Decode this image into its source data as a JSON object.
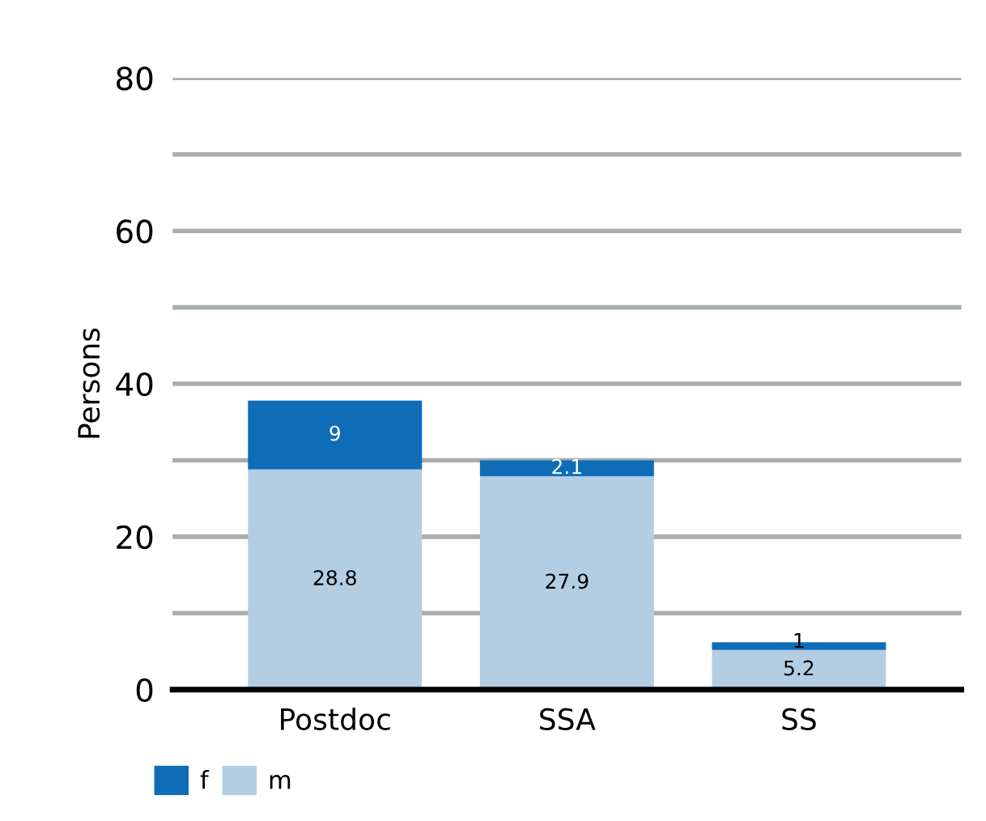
{
  "chart_data": {
    "type": "bar",
    "stacked": true,
    "ylabel": "Persons",
    "categories": [
      "Postdoc",
      "SSA",
      "SS"
    ],
    "series": [
      {
        "name": "m",
        "color": "#b3cde3",
        "values": [
          28.8,
          27.9,
          5.2
        ]
      },
      {
        "name": "f",
        "color": "#0f6db7",
        "values": [
          9,
          2.1,
          1
        ]
      }
    ],
    "data_labels": true,
    "ylim": [
      0,
      80
    ],
    "yticks": [
      0,
      {
        "value": 10,
        "label": null
      },
      20,
      {
        "value": 30,
        "label": null
      },
      40,
      {
        "value": 50,
        "label": null
      },
      60,
      {
        "value": 70,
        "label": null
      },
      80
    ],
    "grid": "y",
    "legend": "bottom"
  }
}
